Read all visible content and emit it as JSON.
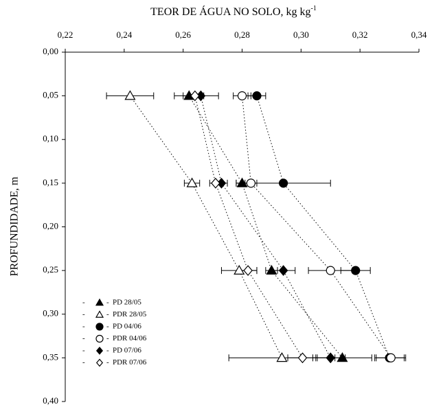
{
  "chart_data": {
    "type": "scatter",
    "x_label": "TEOR DE ÁGUA NO SOLO, kg kg",
    "x_label_superscript": "-1",
    "y_label": "PROFUNDIDADE, m",
    "y": [
      0.05,
      0.15,
      0.25,
      0.35
    ],
    "xlim": [
      0.22,
      0.34
    ],
    "xticks": [
      {
        "value": 0.22,
        "label": "0,22"
      },
      {
        "value": 0.24,
        "label": "0,24"
      },
      {
        "value": 0.26,
        "label": "0,26"
      },
      {
        "value": 0.28,
        "label": "0,28"
      },
      {
        "value": 0.3,
        "label": "0,30"
      },
      {
        "value": 0.32,
        "label": "0,32"
      },
      {
        "value": 0.34,
        "label": "0,34"
      }
    ],
    "ylim": [
      0,
      0.4
    ],
    "y_inverted": true,
    "yticks": [
      {
        "value": 0,
        "label": "0,00"
      },
      {
        "value": 0.05,
        "label": "0,05"
      },
      {
        "value": 0.1,
        "label": "0,10"
      },
      {
        "value": 0.15,
        "label": "0,15"
      },
      {
        "value": 0.2,
        "label": "0,20"
      },
      {
        "value": 0.25,
        "label": "0,25"
      },
      {
        "value": 0.3,
        "label": "0,30"
      },
      {
        "value": 0.35,
        "label": "0,35"
      },
      {
        "value": 0.4,
        "label": "0,40"
      }
    ],
    "series": [
      {
        "name": "PD 28/05",
        "marker": "triangle",
        "filled": true,
        "color": "#000000",
        "values": [
          0.262,
          0.28,
          0.29,
          0.314
        ],
        "errors": [
          0.005,
          0.002,
          0.002,
          0.01
        ]
      },
      {
        "name": "PDR 28/05",
        "marker": "triangle",
        "filled": false,
        "color": "#000000",
        "values": [
          0.242,
          0.263,
          0.279,
          0.2935
        ],
        "errors": [
          0.008,
          0.0026,
          0.006,
          0.018
        ]
      },
      {
        "name": "PD 04/06",
        "marker": "circle",
        "filled": true,
        "color": "#000000",
        "values": [
          0.285,
          0.294,
          0.3185,
          0.33
        ],
        "errors": [
          0.003,
          0.016,
          0.005,
          0.005
        ]
      },
      {
        "name": "PDR 04/06",
        "marker": "circle",
        "filled": false,
        "color": "#000000",
        "values": [
          0.28,
          0.283,
          0.31,
          0.3305
        ],
        "errors": [
          0.003,
          0.002,
          0.0075,
          0.005
        ]
      },
      {
        "name": "PD 07/06",
        "marker": "diamond",
        "filled": true,
        "color": "#000000",
        "values": [
          0.266,
          0.273,
          0.294,
          0.31
        ],
        "errors": [
          0.006,
          0.002,
          0.004,
          0.005
        ]
      },
      {
        "name": "PDR 07/06",
        "marker": "diamond",
        "filled": false,
        "color": "#000000",
        "values": [
          0.264,
          0.271,
          0.282,
          0.3005
        ],
        "errors": [
          0.002,
          0.002,
          0.003,
          0.005
        ]
      }
    ]
  }
}
